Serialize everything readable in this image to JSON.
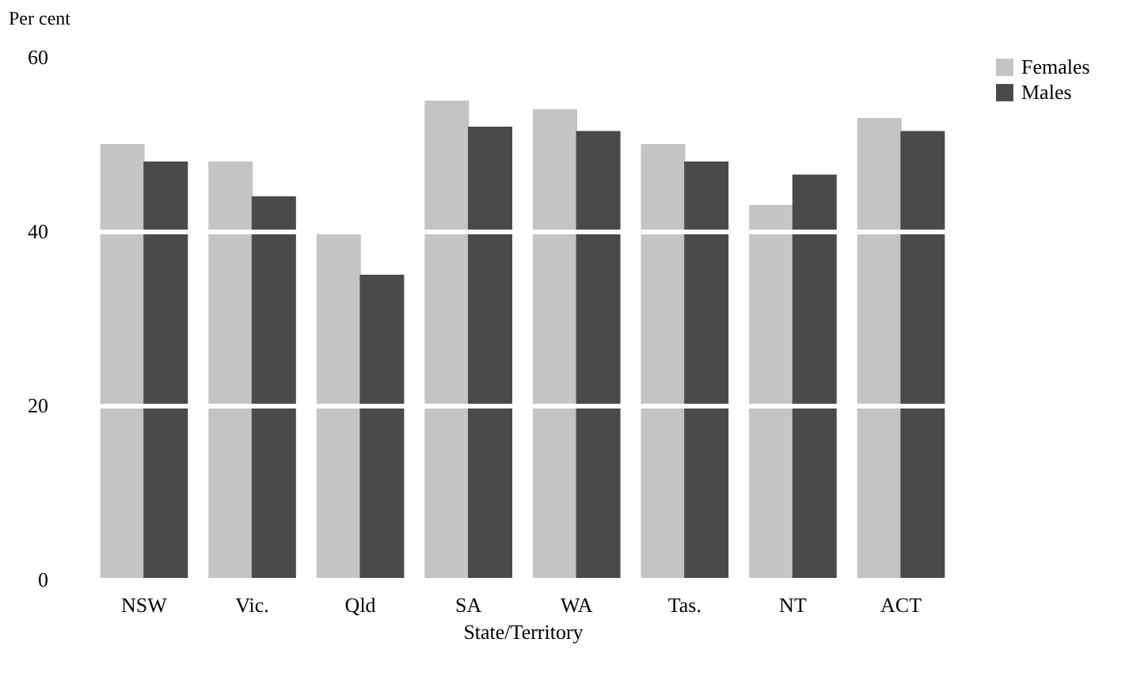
{
  "chart_data": {
    "type": "bar",
    "xlabel": "State/Territory",
    "ylabel": "Per cent",
    "categories": [
      "NSW",
      "Vic.",
      "Qld",
      "SA",
      "WA",
      "Tas.",
      "NT",
      "ACT"
    ],
    "series": [
      {
        "name": "Females",
        "color": "#c4c4c4",
        "values": [
          50,
          48,
          40,
          55,
          54,
          50,
          43,
          53
        ]
      },
      {
        "name": "Males",
        "color": "#4a4a4a",
        "values": [
          48,
          44,
          35,
          52,
          51.5,
          48,
          46.5,
          51.5
        ]
      }
    ],
    "ylim": [
      0,
      60
    ],
    "yticks": [
      0,
      20,
      40,
      60
    ],
    "grid": "y",
    "legend": "right"
  }
}
